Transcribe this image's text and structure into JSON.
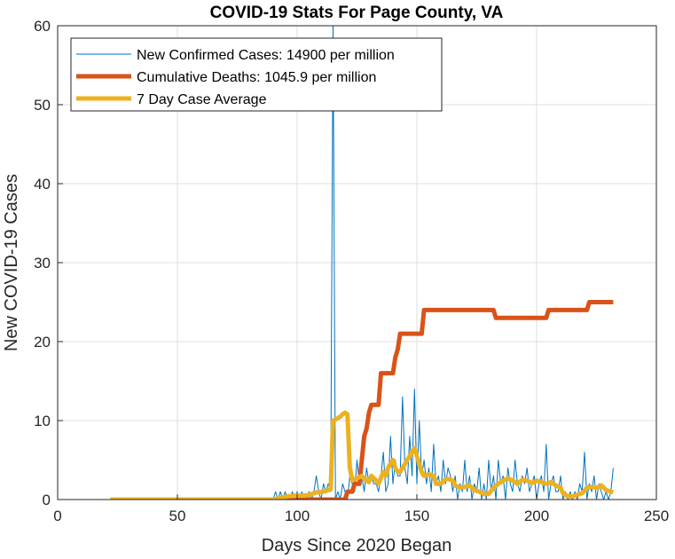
{
  "chart_data": {
    "type": "line",
    "title": "COVID-19 Stats For Page County, VA",
    "xlabel": "Days Since 2020 Began",
    "ylabel": "New COVID-19 Cases",
    "xlim": [
      0,
      250
    ],
    "ylim": [
      0,
      60
    ],
    "xticks": [
      0,
      50,
      100,
      150,
      200,
      250
    ],
    "yticks": [
      0,
      10,
      20,
      30,
      40,
      50,
      60
    ],
    "grid": true,
    "legend_position": "top-left",
    "series": [
      {
        "name": "New Confirmed Cases: 14900 per million",
        "color": "#0072BD",
        "line_width": "thin",
        "points": [
          [
            22,
            0
          ],
          [
            90,
            0
          ],
          [
            91,
            1
          ],
          [
            92,
            0
          ],
          [
            93,
            1
          ],
          [
            94,
            0
          ],
          [
            95,
            1
          ],
          [
            96,
            0
          ],
          [
            97,
            0
          ],
          [
            98,
            1
          ],
          [
            99,
            0
          ],
          [
            100,
            1
          ],
          [
            101,
            0
          ],
          [
            102,
            1
          ],
          [
            103,
            0
          ],
          [
            104,
            0
          ],
          [
            105,
            1
          ],
          [
            106,
            0
          ],
          [
            107,
            1
          ],
          [
            108,
            3
          ],
          [
            109,
            1
          ],
          [
            110,
            0
          ],
          [
            111,
            2
          ],
          [
            112,
            1
          ],
          [
            113,
            2
          ],
          [
            114,
            1
          ],
          [
            115,
            60
          ],
          [
            116,
            0
          ],
          [
            117,
            1
          ],
          [
            118,
            0
          ],
          [
            119,
            2
          ],
          [
            120,
            1
          ],
          [
            121,
            0
          ],
          [
            122,
            3
          ],
          [
            123,
            2
          ],
          [
            124,
            1
          ],
          [
            125,
            5
          ],
          [
            126,
            2
          ],
          [
            127,
            3
          ],
          [
            128,
            1
          ],
          [
            129,
            4
          ],
          [
            130,
            2
          ],
          [
            131,
            3
          ],
          [
            132,
            2
          ],
          [
            133,
            2
          ],
          [
            134,
            1
          ],
          [
            135,
            3
          ],
          [
            136,
            6
          ],
          [
            137,
            1
          ],
          [
            138,
            2
          ],
          [
            139,
            8
          ],
          [
            140,
            2
          ],
          [
            141,
            5
          ],
          [
            142,
            3
          ],
          [
            143,
            3
          ],
          [
            144,
            13
          ],
          [
            145,
            4
          ],
          [
            146,
            2
          ],
          [
            147,
            8
          ],
          [
            148,
            3
          ],
          [
            149,
            14
          ],
          [
            150,
            2
          ],
          [
            151,
            10
          ],
          [
            152,
            3
          ],
          [
            153,
            5
          ],
          [
            154,
            2
          ],
          [
            155,
            4
          ],
          [
            156,
            1
          ],
          [
            157,
            7
          ],
          [
            158,
            2
          ],
          [
            159,
            3
          ],
          [
            160,
            1
          ],
          [
            161,
            5
          ],
          [
            162,
            2
          ],
          [
            163,
            4
          ],
          [
            164,
            3
          ],
          [
            165,
            1
          ],
          [
            166,
            3
          ],
          [
            167,
            0
          ],
          [
            168,
            2
          ],
          [
            169,
            1
          ],
          [
            170,
            5
          ],
          [
            171,
            1
          ],
          [
            172,
            3
          ],
          [
            173,
            0
          ],
          [
            174,
            2
          ],
          [
            175,
            1
          ],
          [
            176,
            4
          ],
          [
            177,
            0
          ],
          [
            178,
            2
          ],
          [
            179,
            0
          ],
          [
            180,
            5
          ],
          [
            181,
            1
          ],
          [
            182,
            3
          ],
          [
            183,
            0
          ],
          [
            184,
            5
          ],
          [
            185,
            2
          ],
          [
            186,
            3
          ],
          [
            187,
            0
          ],
          [
            188,
            4
          ],
          [
            189,
            2
          ],
          [
            190,
            1
          ],
          [
            191,
            5
          ],
          [
            192,
            2
          ],
          [
            193,
            1
          ],
          [
            194,
            3
          ],
          [
            195,
            2
          ],
          [
            196,
            4
          ],
          [
            197,
            1
          ],
          [
            198,
            2
          ],
          [
            199,
            3
          ],
          [
            200,
            0
          ],
          [
            201,
            2
          ],
          [
            202,
            3
          ],
          [
            203,
            1
          ],
          [
            204,
            7
          ],
          [
            205,
            0
          ],
          [
            206,
            2
          ],
          [
            207,
            3
          ],
          [
            208,
            1
          ],
          [
            209,
            1
          ],
          [
            210,
            3
          ],
          [
            211,
            0
          ],
          [
            212,
            1
          ],
          [
            213,
            0
          ],
          [
            214,
            1
          ],
          [
            215,
            0
          ],
          [
            216,
            1
          ],
          [
            217,
            0
          ],
          [
            218,
            2
          ],
          [
            219,
            1
          ],
          [
            220,
            6
          ],
          [
            221,
            0
          ],
          [
            222,
            2
          ],
          [
            223,
            1
          ],
          [
            224,
            3
          ],
          [
            225,
            0
          ],
          [
            226,
            2
          ],
          [
            227,
            1
          ],
          [
            228,
            0
          ],
          [
            229,
            1
          ],
          [
            230,
            0
          ],
          [
            231,
            1
          ],
          [
            232,
            4
          ]
        ]
      },
      {
        "name": "Cumulative Deaths: 1045.9 per million",
        "color": "#D95319",
        "line_width": "thick",
        "points": [
          [
            22,
            0
          ],
          [
            120,
            0
          ],
          [
            121,
            1
          ],
          [
            123,
            1
          ],
          [
            124,
            2
          ],
          [
            126,
            2
          ],
          [
            127,
            5
          ],
          [
            128,
            8
          ],
          [
            129,
            9
          ],
          [
            130,
            11
          ],
          [
            131,
            12
          ],
          [
            134,
            12
          ],
          [
            135,
            16
          ],
          [
            140,
            16
          ],
          [
            141,
            18
          ],
          [
            142,
            19
          ],
          [
            143,
            21
          ],
          [
            152,
            21
          ],
          [
            153,
            24
          ],
          [
            182,
            24
          ],
          [
            183,
            23
          ],
          [
            204,
            23
          ],
          [
            205,
            24
          ],
          [
            221,
            24
          ],
          [
            222,
            25
          ],
          [
            232,
            25
          ]
        ]
      },
      {
        "name": "7 Day Case Average",
        "color": "#EDB120",
        "line_width": "thick",
        "points": [
          [
            22,
            0
          ],
          [
            90,
            0
          ],
          [
            93,
            0.2
          ],
          [
            96,
            0.4
          ],
          [
            100,
            0.5
          ],
          [
            103,
            0.5
          ],
          [
            105,
            0.6
          ],
          [
            108,
            0.9
          ],
          [
            111,
            1.0
          ],
          [
            113,
            1.2
          ],
          [
            114,
            1.3
          ],
          [
            115,
            10.0
          ],
          [
            117,
            10.3
          ],
          [
            118,
            10.5
          ],
          [
            119,
            10.8
          ],
          [
            120,
            11.0
          ],
          [
            121,
            10.8
          ],
          [
            122,
            4.0
          ],
          [
            123,
            2.5
          ],
          [
            125,
            2.7
          ],
          [
            127,
            3.0
          ],
          [
            128,
            2.6
          ],
          [
            130,
            2.2
          ],
          [
            131,
            3.0
          ],
          [
            133,
            2.4
          ],
          [
            134,
            2.0
          ],
          [
            136,
            3.5
          ],
          [
            137,
            3.0
          ],
          [
            138,
            4.0
          ],
          [
            139,
            4.6
          ],
          [
            140,
            5.0
          ],
          [
            141,
            4.0
          ],
          [
            142,
            3.5
          ],
          [
            143,
            3.5
          ],
          [
            145,
            4.5
          ],
          [
            147,
            5.5
          ],
          [
            149,
            6.5
          ],
          [
            150,
            5.5
          ],
          [
            151,
            4.5
          ],
          [
            152,
            3.5
          ],
          [
            153,
            3.0
          ],
          [
            155,
            3.2
          ],
          [
            157,
            3.0
          ],
          [
            158,
            2.0
          ],
          [
            160,
            2.0
          ],
          [
            162,
            2.6
          ],
          [
            163,
            2.6
          ],
          [
            165,
            2.4
          ],
          [
            166,
            1.8
          ],
          [
            168,
            1.5
          ],
          [
            170,
            1.6
          ],
          [
            172,
            1.8
          ],
          [
            174,
            1.2
          ],
          [
            176,
            1.0
          ],
          [
            178,
            0.7
          ],
          [
            180,
            0.7
          ],
          [
            182,
            1.5
          ],
          [
            184,
            2.0
          ],
          [
            186,
            2.4
          ],
          [
            188,
            2.7
          ],
          [
            190,
            2.4
          ],
          [
            192,
            2.0
          ],
          [
            194,
            2.5
          ],
          [
            196,
            2.4
          ],
          [
            198,
            2.1
          ],
          [
            200,
            2.4
          ],
          [
            202,
            2.2
          ],
          [
            204,
            2.0
          ],
          [
            206,
            2.2
          ],
          [
            208,
            1.8
          ],
          [
            210,
            1.5
          ],
          [
            211,
            0.8
          ],
          [
            213,
            0.4
          ],
          [
            215,
            0.4
          ],
          [
            217,
            0.6
          ],
          [
            219,
            0.8
          ],
          [
            221,
            1.5
          ],
          [
            223,
            1.6
          ],
          [
            225,
            1.5
          ],
          [
            226,
            1.6
          ],
          [
            227,
            1.8
          ],
          [
            229,
            1.2
          ],
          [
            231,
            1.0
          ],
          [
            232,
            0.9
          ]
        ]
      }
    ]
  }
}
